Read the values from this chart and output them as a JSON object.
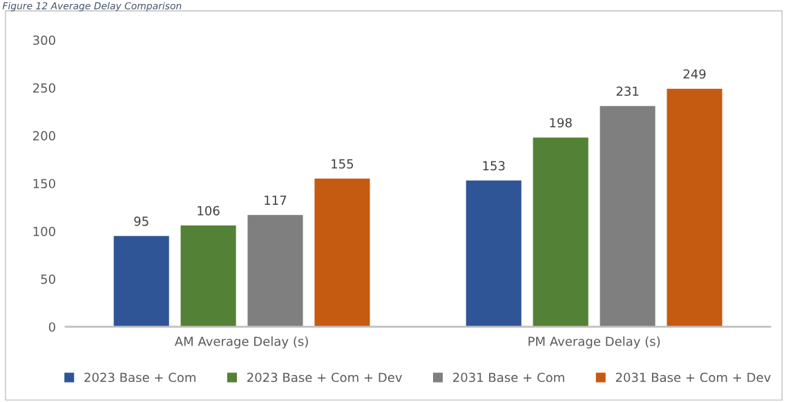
{
  "chart_data": {
    "type": "bar",
    "title": "Figure 12 Average Delay Comparison",
    "categories": [
      "AM Average Delay (s)",
      "PM Average Delay (s)"
    ],
    "series": [
      {
        "name": "2023 Base + Com",
        "color": "#2f5597",
        "values": [
          95,
          153
        ]
      },
      {
        "name": "2023 Base + Com + Dev",
        "color": "#538135",
        "values": [
          106,
          198
        ]
      },
      {
        "name": "2031 Base + Com",
        "color": "#7f7f7f",
        "values": [
          117,
          231
        ]
      },
      {
        "name": "2031 Base + Com + Dev",
        "color": "#c55a11",
        "values": [
          155,
          249
        ]
      }
    ],
    "ylim": [
      0,
      300
    ],
    "yticks": [
      0,
      50,
      100,
      150,
      200,
      250,
      300
    ],
    "data_labels": true,
    "grid": false,
    "legend": "bottom"
  }
}
